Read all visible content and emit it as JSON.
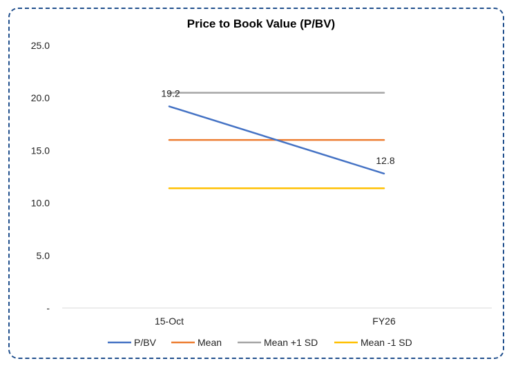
{
  "chart_data": {
    "type": "line",
    "title": "Price to Book Value (P/BV)",
    "categories": [
      "15-Oct",
      "FY26"
    ],
    "ylim": [
      0,
      25
    ],
    "yticks": [
      0,
      5,
      10,
      15,
      20,
      25
    ],
    "ytick_labels": [
      "-",
      "5.0",
      "10.0",
      "15.0",
      "20.0",
      "25.0"
    ],
    "grid": false,
    "legend_position": "bottom",
    "series": [
      {
        "name": "P/BV",
        "values": [
          19.2,
          12.8
        ],
        "color": "#4472c4",
        "labels": [
          "19.2",
          "12.8"
        ]
      },
      {
        "name": "Mean",
        "values": [
          16.0,
          16.0
        ],
        "color": "#ed7d31"
      },
      {
        "name": "Mean +1 SD",
        "values": [
          20.5,
          20.5
        ],
        "color": "#a5a5a5"
      },
      {
        "name": "Mean -1 SD",
        "values": [
          11.4,
          11.4
        ],
        "color": "#ffc000"
      }
    ]
  }
}
